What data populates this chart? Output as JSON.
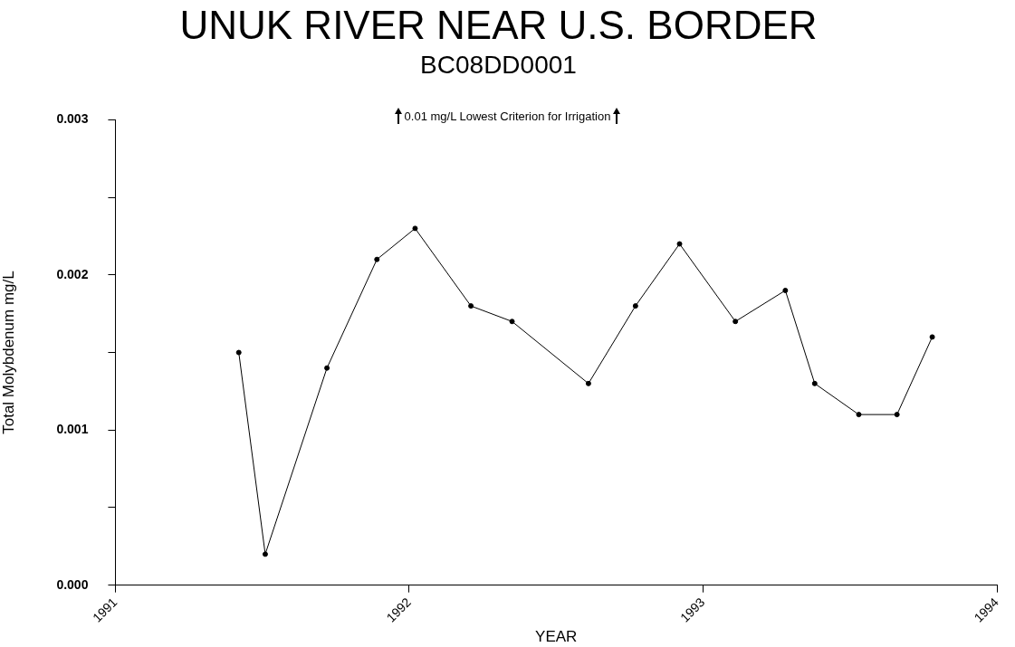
{
  "chart_data": {
    "type": "line",
    "title": "UNUK RIVER NEAR U.S. BORDER",
    "subtitle": "BC08DD0001",
    "xlabel": "YEAR",
    "ylabel": "Total Molybdenum mg/L",
    "annotations": [
      "0.01 mg/L Lowest Criterion for Irrigation"
    ],
    "x": [
      1991.42,
      1991.51,
      1991.72,
      1991.89,
      1992.02,
      1992.21,
      1992.35,
      1992.61,
      1992.77,
      1992.92,
      1993.11,
      1993.28,
      1993.38,
      1993.53,
      1993.66,
      1993.78
    ],
    "series": [
      {
        "color": "#000000",
        "values": [
          0.0015,
          0.0002,
          0.0014,
          0.0021,
          0.0023,
          0.0018,
          0.0017,
          0.0013,
          0.0018,
          0.0022,
          0.0017,
          0.0019,
          0.0013,
          0.0011,
          0.0011,
          0.0016
        ]
      }
    ],
    "xlim": [
      1991,
      1994
    ],
    "xticks": [
      1991,
      1992,
      1993,
      1994
    ],
    "ylim": [
      0,
      0.003
    ],
    "yticks": [
      {
        "value": 0,
        "label": "0.000"
      },
      {
        "value": 0.0005,
        "label": null
      },
      {
        "value": 0.001,
        "label": "0.001"
      },
      {
        "value": 0.0015,
        "label": null
      },
      {
        "value": 0.002,
        "label": "0.002"
      },
      {
        "value": 0.0025,
        "label": null
      },
      {
        "value": 0.003,
        "label": "0.003"
      }
    ],
    "grid": false,
    "legend": false,
    "marker": "circle",
    "line_style": "solid"
  }
}
